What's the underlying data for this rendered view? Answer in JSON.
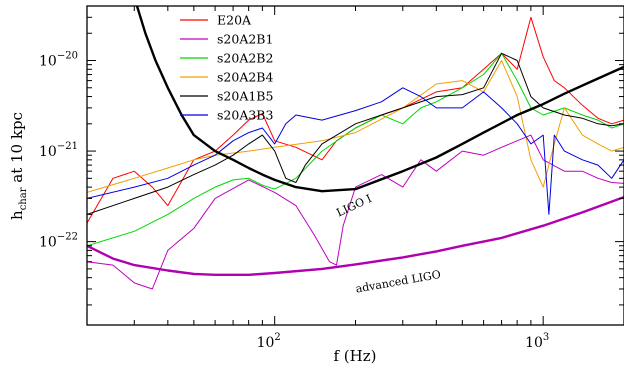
{
  "chart_data": {
    "type": "line",
    "xlabel": "f (Hz)",
    "ylabel": "h_char at 10 kpc",
    "ylabel_main": "h",
    "ylabel_sub": "char",
    "ylabel_rest": " at 10 kpc",
    "xscale": "log",
    "yscale": "log",
    "xlim": [
      20,
      2000
    ],
    "ylim": [
      1.2e-23,
      4e-20
    ],
    "grid": false,
    "legend_position": "top-center",
    "x_ticks": [
      {
        "value": 100,
        "base": "10",
        "exp": "2"
      },
      {
        "value": 1000,
        "base": "10",
        "exp": "3"
      }
    ],
    "y_ticks": [
      {
        "value": 1e-22,
        "base": "10",
        "exp": "−22"
      },
      {
        "value": 1e-21,
        "base": "10",
        "exp": "−21"
      },
      {
        "value": 1e-20,
        "base": "10",
        "exp": "−20"
      }
    ],
    "series": [
      {
        "name": "E20A",
        "color": "#ff0000",
        "width": 1,
        "points": [
          [
            20,
            1.6e-22
          ],
          [
            25,
            5e-22
          ],
          [
            30,
            6e-22
          ],
          [
            35,
            4e-22
          ],
          [
            40,
            2.5e-22
          ],
          [
            50,
            8e-22
          ],
          [
            60,
            1e-21
          ],
          [
            70,
            1.5e-21
          ],
          [
            80,
            2.2e-21
          ],
          [
            90,
            2.6e-21
          ],
          [
            100,
            1.3e-21
          ],
          [
            120,
            1.1e-21
          ],
          [
            150,
            8e-22
          ],
          [
            170,
            1.3e-21
          ],
          [
            200,
            1.8e-21
          ],
          [
            250,
            2.5e-21
          ],
          [
            300,
            3e-21
          ],
          [
            400,
            4.5e-21
          ],
          [
            500,
            5e-21
          ],
          [
            600,
            8e-21
          ],
          [
            700,
            1.2e-20
          ],
          [
            800,
            8e-21
          ],
          [
            900,
            3e-20
          ],
          [
            1000,
            1.1e-20
          ],
          [
            1100,
            6e-21
          ],
          [
            1200,
            5e-21
          ],
          [
            1400,
            3.2e-21
          ],
          [
            1600,
            2.3e-21
          ],
          [
            1800,
            2e-21
          ],
          [
            2000,
            2.2e-21
          ]
        ]
      },
      {
        "name": "s20A2B1",
        "color": "#c000c0",
        "width": 1,
        "points": [
          [
            20,
            6e-23
          ],
          [
            25,
            5.5e-23
          ],
          [
            30,
            3.5e-23
          ],
          [
            35,
            3e-23
          ],
          [
            40,
            8e-23
          ],
          [
            50,
            1.4e-22
          ],
          [
            60,
            3e-22
          ],
          [
            80,
            4.8e-22
          ],
          [
            100,
            3.5e-22
          ],
          [
            120,
            2.5e-22
          ],
          [
            140,
            1.2e-22
          ],
          [
            160,
            6e-23
          ],
          [
            170,
            5.5e-23
          ],
          [
            180,
            1.5e-22
          ],
          [
            200,
            4e-22
          ],
          [
            250,
            5.5e-22
          ],
          [
            300,
            4e-22
          ],
          [
            350,
            8e-22
          ],
          [
            400,
            6e-22
          ],
          [
            500,
            1e-21
          ],
          [
            600,
            9e-22
          ],
          [
            700,
            1.1e-21
          ],
          [
            900,
            1.5e-21
          ],
          [
            1000,
            8e-22
          ],
          [
            1200,
            6e-22
          ],
          [
            1400,
            6e-22
          ],
          [
            1600,
            5e-22
          ],
          [
            1800,
            4.5e-22
          ],
          [
            2000,
            4.4e-22
          ]
        ]
      },
      {
        "name": "s20A2B2",
        "color": "#00d800",
        "width": 1,
        "points": [
          [
            20,
            9e-23
          ],
          [
            30,
            1.3e-22
          ],
          [
            40,
            2e-22
          ],
          [
            50,
            3e-22
          ],
          [
            60,
            4e-22
          ],
          [
            70,
            4.8e-22
          ],
          [
            80,
            5e-22
          ],
          [
            90,
            4.2e-22
          ],
          [
            100,
            3.8e-22
          ],
          [
            120,
            5e-22
          ],
          [
            150,
            1e-21
          ],
          [
            200,
            1.8e-21
          ],
          [
            250,
            2.5e-21
          ],
          [
            300,
            2e-21
          ],
          [
            350,
            3e-21
          ],
          [
            400,
            3.5e-21
          ],
          [
            500,
            5e-21
          ],
          [
            600,
            7e-21
          ],
          [
            700,
            1.2e-20
          ],
          [
            800,
            6e-21
          ],
          [
            900,
            3e-21
          ],
          [
            1000,
            2.5e-21
          ],
          [
            1200,
            3e-21
          ],
          [
            1400,
            2.5e-21
          ],
          [
            1600,
            2.2e-21
          ],
          [
            1800,
            1.8e-21
          ],
          [
            2000,
            2e-21
          ]
        ]
      },
      {
        "name": "s20A2B4",
        "color": "#f0a000",
        "width": 1,
        "points": [
          [
            20,
            3.5e-22
          ],
          [
            30,
            5e-22
          ],
          [
            40,
            6.5e-22
          ],
          [
            50,
            8e-22
          ],
          [
            60,
            9e-22
          ],
          [
            80,
            1e-21
          ],
          [
            100,
            1.1e-21
          ],
          [
            150,
            1.3e-21
          ],
          [
            200,
            1.6e-21
          ],
          [
            300,
            3e-21
          ],
          [
            400,
            5.5e-21
          ],
          [
            500,
            6e-21
          ],
          [
            600,
            4.5e-21
          ],
          [
            700,
            1e-20
          ],
          [
            800,
            4e-21
          ],
          [
            900,
            8e-22
          ],
          [
            1000,
            4e-22
          ],
          [
            1100,
            1.2e-21
          ],
          [
            1200,
            3e-21
          ],
          [
            1400,
            1.5e-21
          ],
          [
            1600,
            1.2e-21
          ],
          [
            1800,
            1e-21
          ],
          [
            2000,
            1.1e-21
          ]
        ]
      },
      {
        "name": "s20A1B5",
        "color": "#000000",
        "width": 1,
        "points": [
          [
            20,
            2e-22
          ],
          [
            30,
            3e-22
          ],
          [
            40,
            4e-22
          ],
          [
            50,
            5.5e-22
          ],
          [
            60,
            7e-22
          ],
          [
            70,
            9e-22
          ],
          [
            80,
            1.2e-21
          ],
          [
            90,
            1.5e-21
          ],
          [
            100,
            1e-21
          ],
          [
            110,
            5e-22
          ],
          [
            120,
            4.5e-22
          ],
          [
            130,
            7e-22
          ],
          [
            150,
            1.2e-21
          ],
          [
            200,
            2e-21
          ],
          [
            250,
            2.5e-21
          ],
          [
            300,
            3e-21
          ],
          [
            400,
            4e-21
          ],
          [
            500,
            4.2e-21
          ],
          [
            600,
            5e-21
          ],
          [
            700,
            1.2e-20
          ],
          [
            800,
            1e-20
          ],
          [
            900,
            4e-21
          ],
          [
            1000,
            3e-21
          ],
          [
            1200,
            2.5e-21
          ],
          [
            1400,
            2.3e-21
          ],
          [
            1600,
            2e-21
          ],
          [
            1800,
            1.9e-21
          ],
          [
            2000,
            2e-21
          ]
        ]
      },
      {
        "name": "s20A3B3",
        "color": "#0000e0",
        "width": 1,
        "points": [
          [
            20,
            3e-22
          ],
          [
            30,
            4e-22
          ],
          [
            40,
            5e-22
          ],
          [
            50,
            7e-22
          ],
          [
            60,
            9e-22
          ],
          [
            70,
            1.3e-21
          ],
          [
            80,
            1.6e-21
          ],
          [
            90,
            1.8e-21
          ],
          [
            100,
            1.2e-21
          ],
          [
            110,
            2e-21
          ],
          [
            120,
            2.5e-21
          ],
          [
            150,
            2.2e-21
          ],
          [
            200,
            2.8e-21
          ],
          [
            250,
            3.5e-21
          ],
          [
            300,
            5e-21
          ],
          [
            350,
            4e-21
          ],
          [
            400,
            3e-21
          ],
          [
            500,
            3e-21
          ],
          [
            600,
            4.5e-21
          ],
          [
            700,
            3e-21
          ],
          [
            800,
            2e-21
          ],
          [
            900,
            1.2e-21
          ],
          [
            1000,
            1.5e-21
          ],
          [
            1050,
            2e-22
          ],
          [
            1100,
            1.5e-21
          ],
          [
            1200,
            1e-21
          ],
          [
            1400,
            8e-22
          ],
          [
            1600,
            7e-22
          ],
          [
            1800,
            5e-22
          ],
          [
            2000,
            8e-22
          ]
        ]
      },
      {
        "name": "LIGO I",
        "color": "#000000",
        "width": 2.4,
        "legend": false,
        "points": [
          [
            30,
            5e-20
          ],
          [
            33,
            2e-20
          ],
          [
            36,
            1e-20
          ],
          [
            40,
            5e-21
          ],
          [
            45,
            2.5e-21
          ],
          [
            50,
            1.5e-21
          ],
          [
            60,
            1e-21
          ],
          [
            70,
            8e-22
          ],
          [
            80,
            6.5e-22
          ],
          [
            90,
            5.5e-22
          ],
          [
            100,
            4.8e-22
          ],
          [
            120,
            4e-22
          ],
          [
            150,
            3.6e-22
          ],
          [
            200,
            3.8e-22
          ],
          [
            300,
            6e-22
          ],
          [
            400,
            8.5e-22
          ],
          [
            500,
            1.2e-21
          ],
          [
            600,
            1.6e-21
          ],
          [
            800,
            2.5e-21
          ],
          [
            1000,
            3.3e-21
          ],
          [
            1200,
            4.3e-21
          ],
          [
            1500,
            5.8e-21
          ],
          [
            2000,
            8.5e-21
          ]
        ]
      },
      {
        "name": "advanced LIGO",
        "color": "#b000b0",
        "width": 2.4,
        "legend": false,
        "points": [
          [
            20,
            9e-23
          ],
          [
            25,
            6.5e-23
          ],
          [
            30,
            5.5e-23
          ],
          [
            40,
            4.8e-23
          ],
          [
            50,
            4.4e-23
          ],
          [
            60,
            4.3e-23
          ],
          [
            80,
            4.3e-23
          ],
          [
            100,
            4.5e-23
          ],
          [
            150,
            5e-23
          ],
          [
            200,
            5.6e-23
          ],
          [
            300,
            6.7e-23
          ],
          [
            400,
            7.8e-23
          ],
          [
            500,
            9e-23
          ],
          [
            700,
            1.1e-22
          ],
          [
            1000,
            1.5e-22
          ],
          [
            1400,
            2.1e-22
          ],
          [
            2000,
            3.1e-22
          ]
        ]
      }
    ],
    "annotations": [
      {
        "text": "LIGO I",
        "x": 200,
        "y": 2.3e-22,
        "rotate": -25
      },
      {
        "text": "advanced LIGO",
        "x": 290,
        "y": 3.3e-23,
        "rotate": -10
      }
    ]
  }
}
